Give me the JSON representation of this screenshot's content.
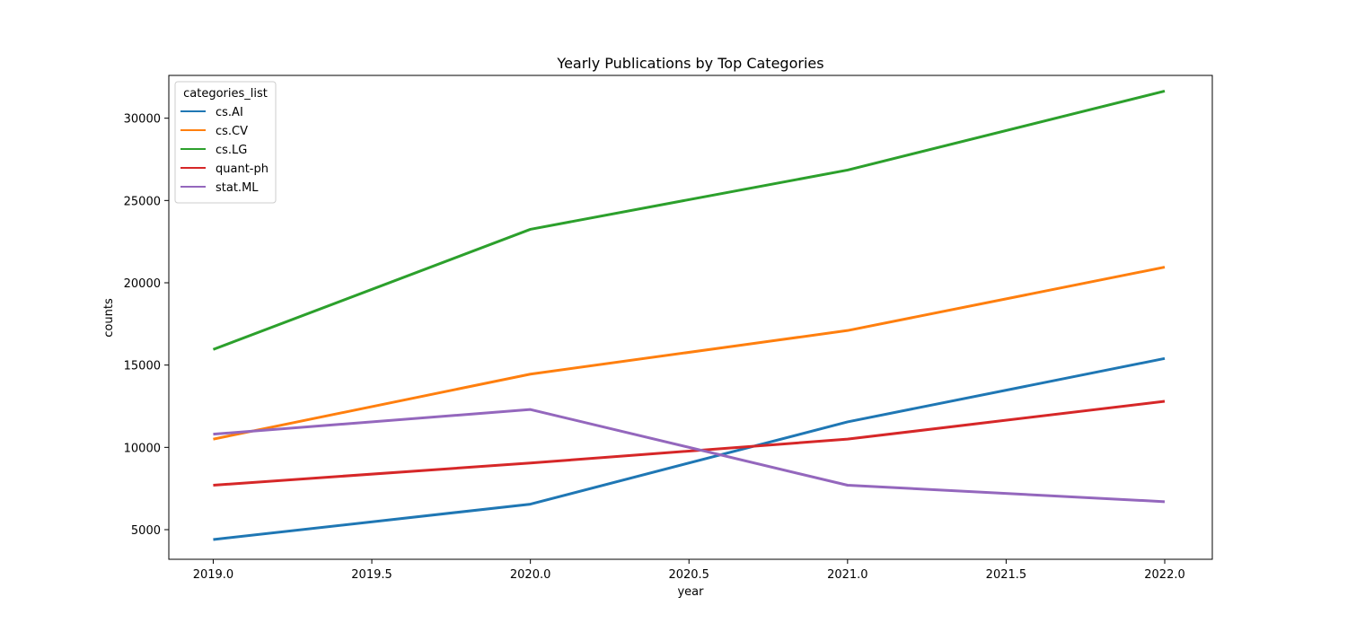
{
  "chart_data": {
    "type": "line",
    "title": "Yearly Publications by Top Categories",
    "xlabel": "year",
    "ylabel": "counts",
    "xlim": [
      2018.86,
      2022.15
    ],
    "ylim": [
      3200,
      32600
    ],
    "x_ticks": [
      2019.0,
      2019.5,
      2020.0,
      2020.5,
      2021.0,
      2021.5,
      2022.0
    ],
    "x_tick_labels": [
      "2019.0",
      "2019.5",
      "2020.0",
      "2020.5",
      "2021.0",
      "2021.5",
      "2022.0"
    ],
    "y_ticks": [
      5000,
      10000,
      15000,
      20000,
      25000,
      30000
    ],
    "y_tick_labels": [
      "5000",
      "10000",
      "15000",
      "20000",
      "25000",
      "30000"
    ],
    "grid": false,
    "legend": {
      "title": "categories_list",
      "placement": "top-left"
    },
    "x": [
      2019,
      2020,
      2021,
      2022
    ],
    "series": [
      {
        "name": "cs.AI",
        "color": "#1f77b4",
        "values": [
          4400,
          6550,
          11550,
          15400
        ]
      },
      {
        "name": "cs.CV",
        "color": "#ff7f0e",
        "values": [
          10500,
          14450,
          17100,
          20950
        ]
      },
      {
        "name": "cs.LG",
        "color": "#2ca02c",
        "values": [
          15950,
          23250,
          26850,
          31650
        ]
      },
      {
        "name": "quant-ph",
        "color": "#d62728",
        "values": [
          7700,
          9050,
          10500,
          12800
        ]
      },
      {
        "name": "stat.ML",
        "color": "#9467bd",
        "values": [
          10800,
          12300,
          7700,
          6700
        ]
      }
    ]
  }
}
